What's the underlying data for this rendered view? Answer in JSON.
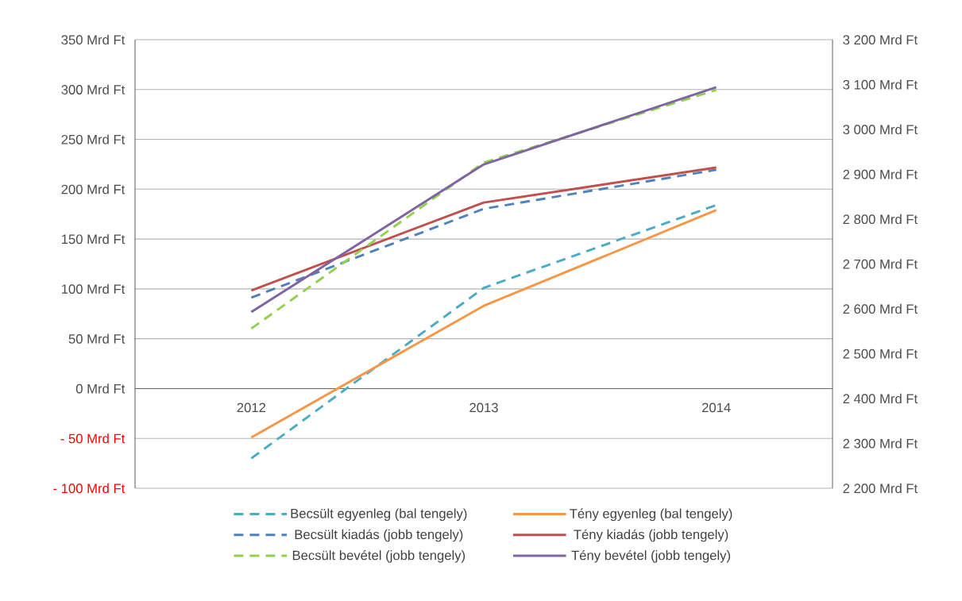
{
  "chart_data": {
    "type": "line",
    "categories": [
      "2012",
      "2013",
      "2014"
    ],
    "ylim": [
      -100,
      350
    ],
    "yticks": [
      {
        "value": -100,
        "label": "- 100  Mrd Ft"
      },
      {
        "value": -50,
        "label": "- 50  Mrd Ft"
      },
      {
        "value": 0,
        "label": "0  Mrd Ft"
      },
      {
        "value": 50,
        "label": "50  Mrd Ft"
      },
      {
        "value": 100,
        "label": "100  Mrd Ft"
      },
      {
        "value": 150,
        "label": "150  Mrd Ft"
      },
      {
        "value": 200,
        "label": "200  Mrd Ft"
      },
      {
        "value": 250,
        "label": "250  Mrd Ft"
      },
      {
        "value": 300,
        "label": "300  Mrd Ft"
      },
      {
        "value": 350,
        "label": "350  Mrd Ft"
      }
    ],
    "y2lim": [
      2200,
      3200
    ],
    "y2ticks": [
      {
        "value": 2200,
        "label": "2 200  Mrd Ft"
      },
      {
        "value": 2300,
        "label": "2 300  Mrd Ft"
      },
      {
        "value": 2400,
        "label": "2 400  Mrd Ft"
      },
      {
        "value": 2500,
        "label": "2 500  Mrd Ft"
      },
      {
        "value": 2600,
        "label": "2 600  Mrd Ft"
      },
      {
        "value": 2700,
        "label": "2 700  Mrd Ft"
      },
      {
        "value": 2800,
        "label": "2 800  Mrd Ft"
      },
      {
        "value": 2900,
        "label": "2 900  Mrd Ft"
      },
      {
        "value": 3000,
        "label": "3 000  Mrd Ft"
      },
      {
        "value": 3100,
        "label": "3 100  Mrd Ft"
      },
      {
        "value": 3200,
        "label": "3 200  Mrd Ft"
      }
    ],
    "grid": "y",
    "legend": "bottom",
    "marker": "none",
    "series": [
      {
        "name": "Becsült egyenleg (bal tengely)",
        "color": "#4bacc6",
        "line_style": "dashed",
        "values": [
          -70,
          101,
          184
        ]
      },
      {
        "name": "Tény egyenleg (bal tengely)",
        "color": "#f79646",
        "line_style": "solid",
        "values": [
          -49,
          83,
          179
        ]
      },
      {
        "name": "Becsült kiadás (jobb tengely)",
        "color": "#4f81bd",
        "line_style": "dashed",
        "axis": "y2",
        "values": [
          2625,
          2823,
          2910
        ]
      },
      {
        "name": "Tény kiadás (jobb tengely)",
        "color": "#c0504d",
        "line_style": "solid",
        "axis": "y2",
        "values": [
          2641,
          2837,
          2915
        ]
      },
      {
        "name": "Becsült bevétel (jobb tengely)",
        "color": "#92d050",
        "line_style": "dashed",
        "axis": "y2",
        "values": [
          2556,
          2926,
          3088
        ]
      },
      {
        "name": "Tény bevétel (jobb tengely)",
        "color": "#8064a2",
        "line_style": "solid",
        "axis": "y2",
        "values": [
          2593,
          2922,
          3094
        ]
      }
    ]
  }
}
